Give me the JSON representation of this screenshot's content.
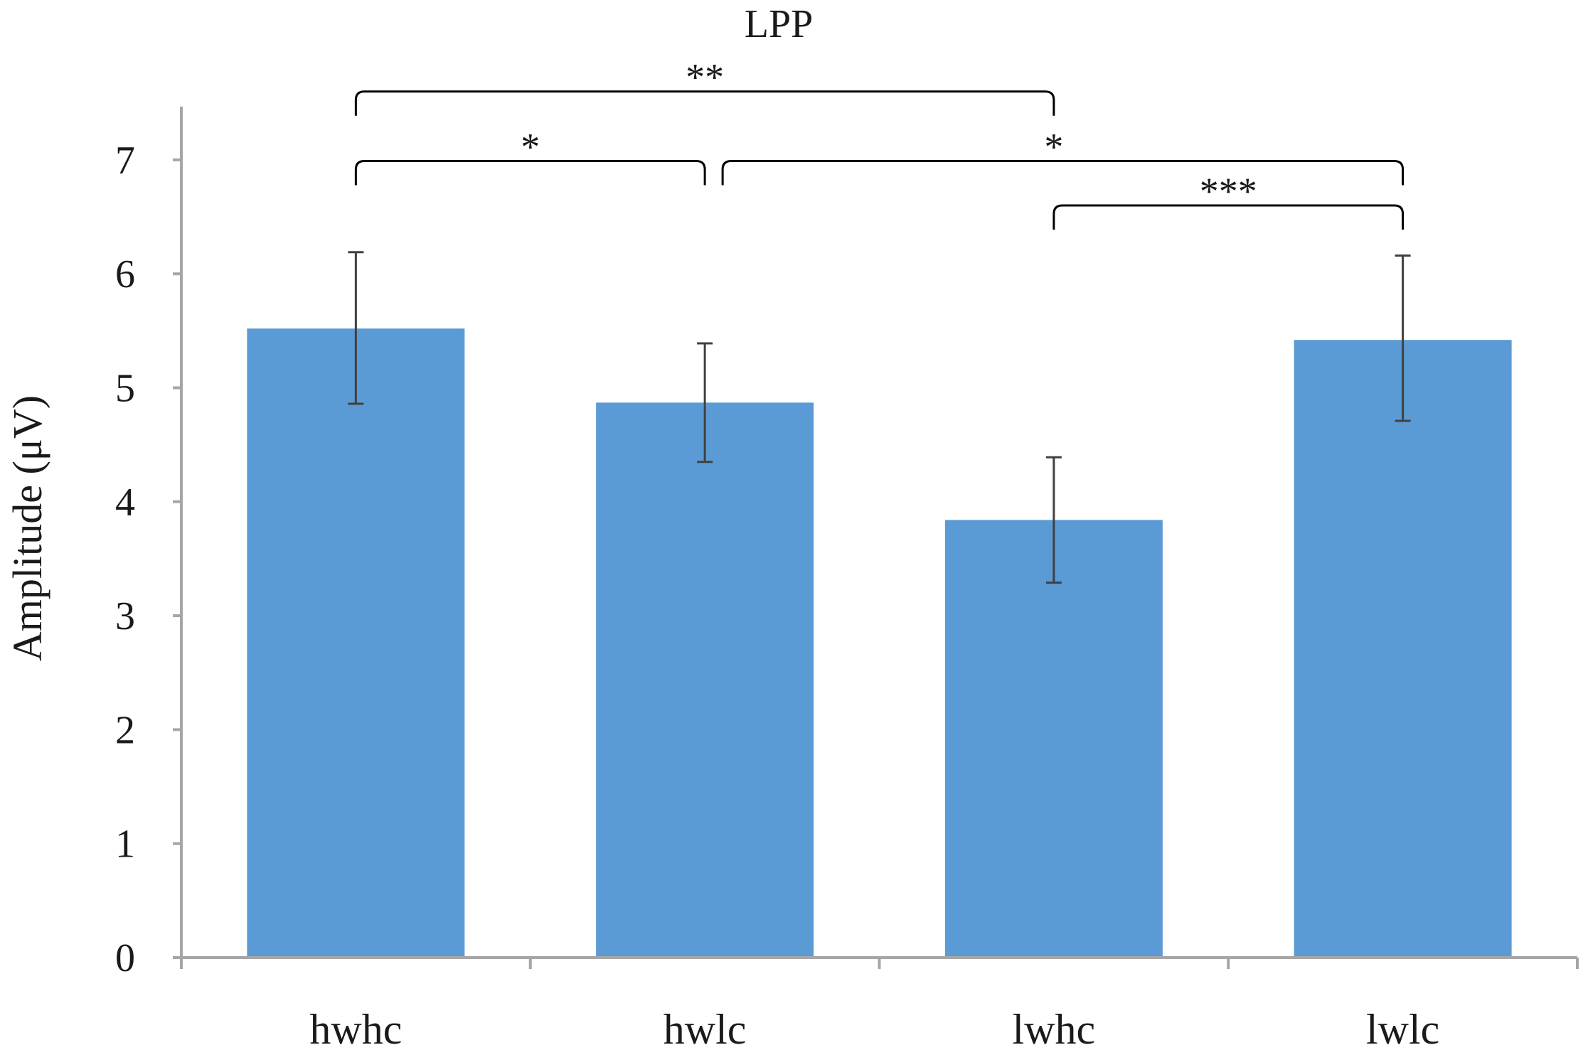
{
  "chart_data": {
    "type": "bar",
    "title": "LPP",
    "xlabel": "",
    "ylabel": "Amplitude (μV)",
    "categories": [
      "hwhc",
      "hwlc",
      "lwhc",
      "lwlc"
    ],
    "values": [
      5.52,
      4.87,
      3.84,
      5.42
    ],
    "error_bars": [
      {
        "low": 4.86,
        "high": 6.19
      },
      {
        "low": 4.35,
        "high": 5.39
      },
      {
        "low": 3.29,
        "high": 4.39
      },
      {
        "low": 4.71,
        "high": 6.16
      }
    ],
    "ylim": [
      0,
      7.5
    ],
    "yticks": [
      "0",
      "1",
      "2",
      "3",
      "4",
      "5",
      "6",
      "7"
    ],
    "grid": false,
    "colors": {
      "bar": "#5B9BD5",
      "axis": "#A6A6A6",
      "error": "#404040",
      "bracket": "#000000"
    },
    "significance": [
      {
        "from": 0,
        "to": 2,
        "label": "**",
        "level": 7.6
      },
      {
        "from": 0,
        "to": 1,
        "label": "*",
        "level": 6.99
      },
      {
        "from": 1,
        "to": 3,
        "label": "*",
        "level": 6.99
      },
      {
        "from": 2,
        "to": 3,
        "label": "***",
        "level": 6.6
      }
    ]
  }
}
